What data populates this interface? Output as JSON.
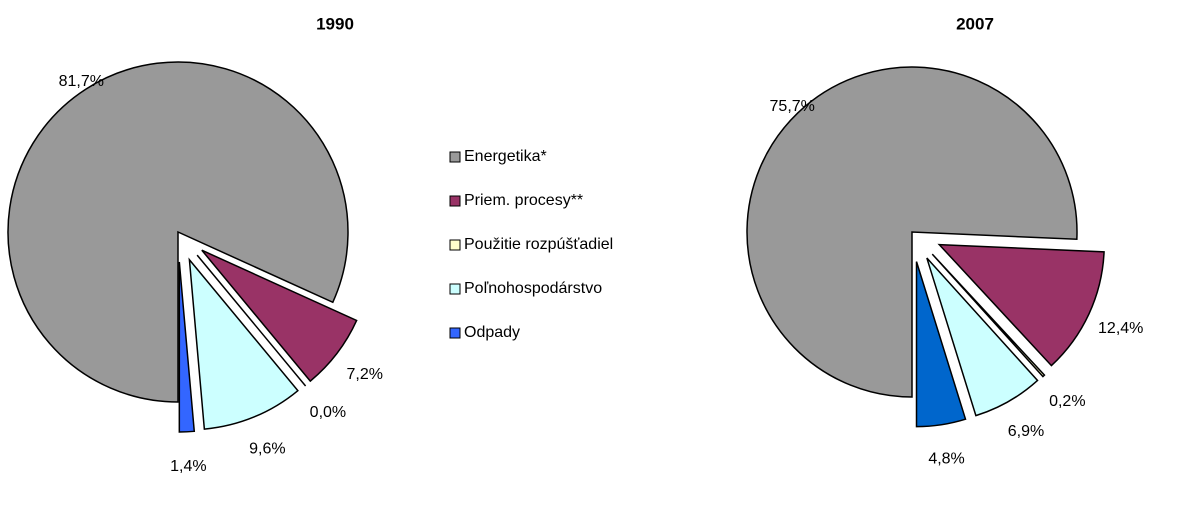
{
  "chart_data": [
    {
      "type": "pie",
      "title": "1990",
      "values": [
        81.7,
        7.2,
        0.0,
        9.6,
        1.4
      ],
      "value_labels": [
        "81,7%",
        "7,2%",
        "0,0%",
        "9,6%",
        "1,4%"
      ],
      "colors": [
        "#999999",
        "#993366",
        "#ffffcc",
        "#ccffff",
        "#3366ff"
      ]
    },
    {
      "type": "pie",
      "title": "2007",
      "values": [
        75.7,
        12.4,
        0.2,
        6.9,
        4.8
      ],
      "value_labels": [
        "75,7%",
        "12,4%",
        "0,2%",
        "6,9%",
        "4,8%"
      ],
      "colors": [
        "#999999",
        "#993366",
        "#ffffcc",
        "#ccffff",
        "#0066cc"
      ]
    }
  ],
  "legend": {
    "categories": [
      "Energetika*",
      "Priem. procesy**",
      "Použitie rozpúšťadiel",
      "Poľnohospodárstvo",
      "Odpady"
    ]
  }
}
